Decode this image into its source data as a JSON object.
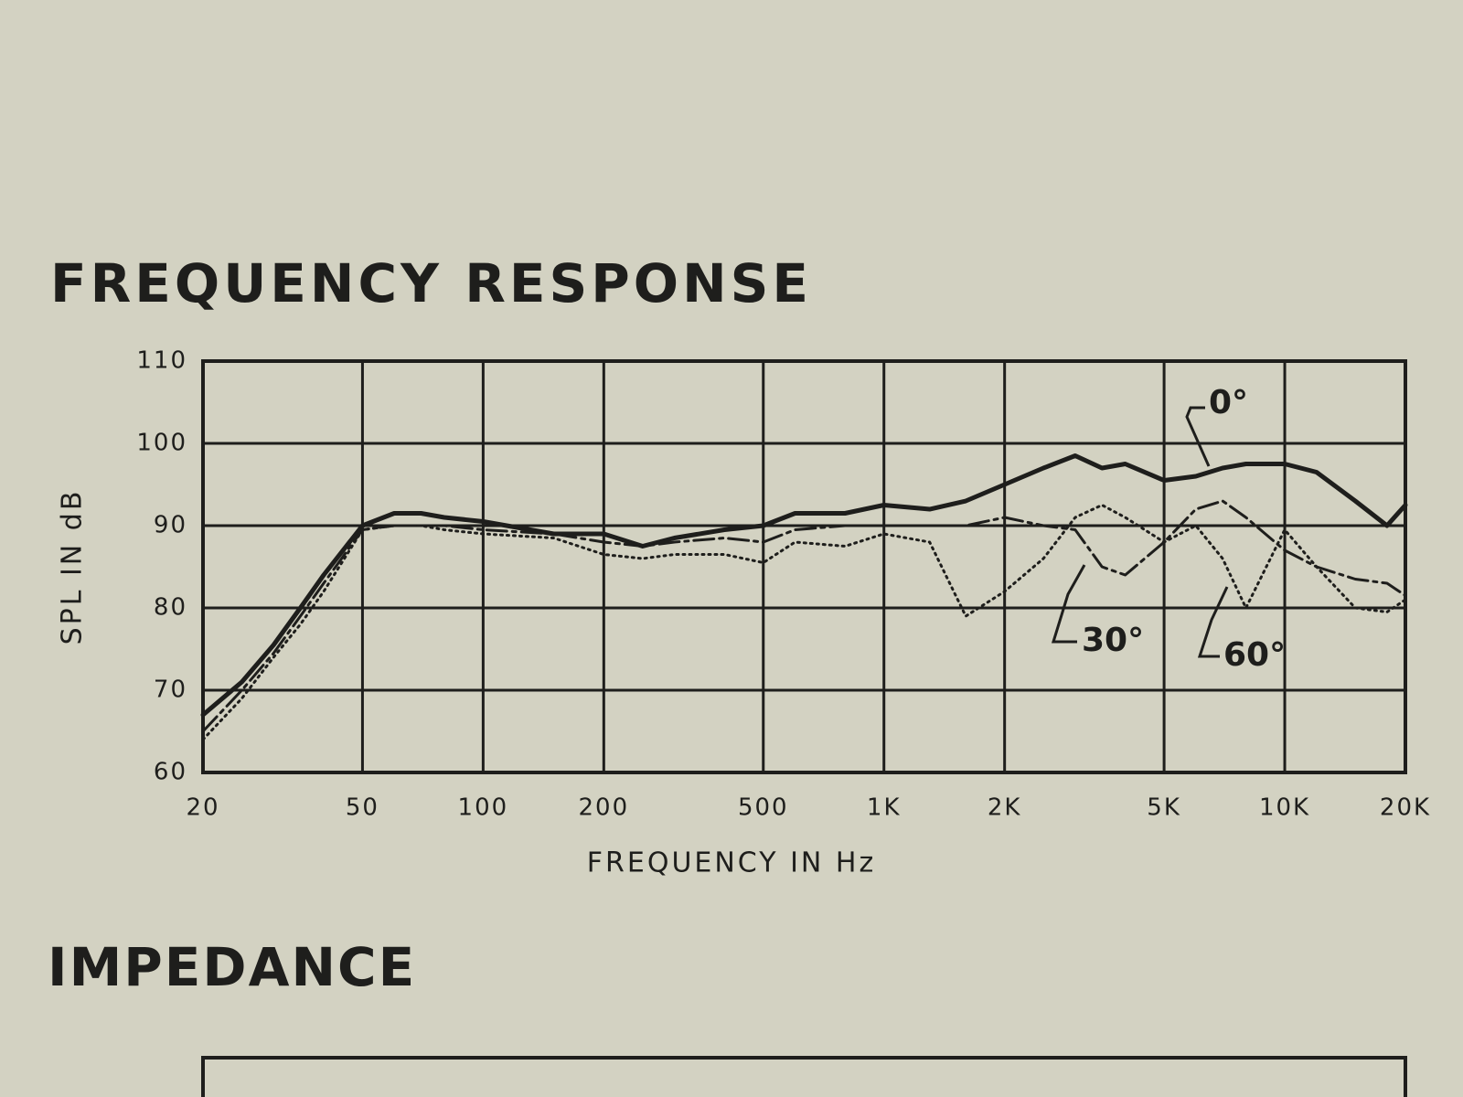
{
  "chart_data": {
    "type": "line",
    "title": "FREQUENCY RESPONSE",
    "xlabel": "FREQUENCY IN Hz",
    "ylabel": "SPL IN dB",
    "xscale": "log",
    "grid": true,
    "x": [
      20,
      25,
      30,
      35,
      40,
      50,
      60,
      70,
      80,
      100,
      150,
      200,
      250,
      300,
      400,
      500,
      600,
      800,
      1000,
      1300,
      1600,
      2000,
      2500,
      3000,
      3500,
      4000,
      5000,
      6000,
      7000,
      8000,
      10000,
      12000,
      15000,
      18000,
      20000
    ],
    "series": [
      {
        "name": "0°",
        "color": "#1e1e1c",
        "style": "solid",
        "values": [
          67,
          71,
          75.5,
          80,
          84,
          90,
          91.5,
          91.5,
          91,
          90.5,
          89,
          89,
          87.5,
          88.5,
          89.5,
          90,
          91.5,
          91.5,
          92.5,
          92,
          93,
          95,
          97,
          98.5,
          97,
          97.5,
          95.5,
          96,
          97,
          97.5,
          97.5,
          96.5,
          93,
          90,
          92.5
        ]
      },
      {
        "name": "30°",
        "color": "#1e1e1c",
        "style": "dashed",
        "values": [
          65,
          70,
          74.5,
          79,
          83,
          89.5,
          90,
          90,
          90,
          89.5,
          89,
          88,
          87.5,
          88,
          88.5,
          88,
          89.5,
          90,
          90,
          90,
          90,
          91,
          90,
          89.5,
          85,
          84,
          88,
          92,
          93,
          91,
          87,
          85,
          83.5,
          83,
          81.5
        ]
      },
      {
        "name": "60°",
        "color": "#1e1e1c",
        "style": "dotted",
        "values": [
          64,
          69,
          74,
          78,
          82,
          89.5,
          90,
          90,
          89.5,
          89,
          88.5,
          86.5,
          86,
          86.5,
          86.5,
          85.5,
          88,
          87.5,
          89,
          88,
          79,
          82,
          86,
          91,
          92.5,
          91,
          88,
          90,
          86,
          80,
          89.5,
          85,
          80,
          79.5,
          81
        ]
      }
    ],
    "xlim": [
      20,
      20000
    ],
    "xticks": [
      20,
      50,
      100,
      200,
      500,
      {
        "value": 1000,
        "label": "1K"
      },
      {
        "value": 2000,
        "label": "2K"
      },
      {
        "value": 5000,
        "label": "5K"
      },
      {
        "value": 10000,
        "label": "10K"
      },
      {
        "value": 20000,
        "label": "20K"
      }
    ],
    "ylim": [
      60,
      110
    ],
    "yticks": [
      60,
      70,
      80,
      90,
      100,
      110
    ]
  },
  "next_section": {
    "title": "IMPEDANCE"
  }
}
